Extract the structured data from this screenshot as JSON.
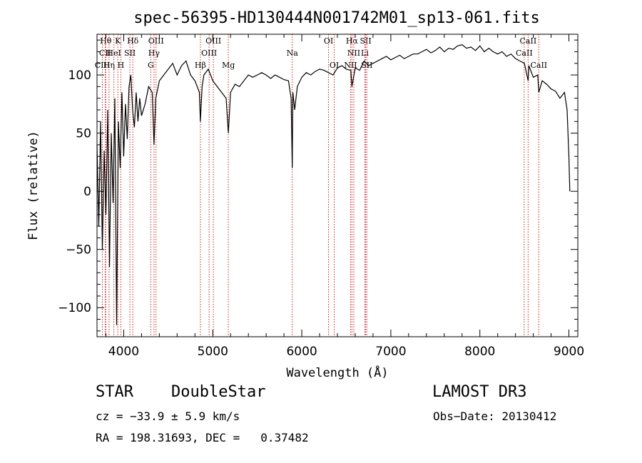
{
  "chart_data": {
    "type": "line",
    "title": "spec-56395-HD130444N001742M01_sp13-061.fits",
    "xlabel": "Wavelength (Å)",
    "ylabel": "Flux (relative)",
    "xlim": [
      3700,
      9100
    ],
    "ylim": [
      -125,
      135
    ],
    "xticks": [
      4000,
      5000,
      6000,
      7000,
      8000,
      9000
    ],
    "yticks": [
      -100,
      -50,
      0,
      50,
      100
    ],
    "xtick_labels": [
      "4000",
      "5000",
      "6000",
      "7000",
      "8000",
      "9000"
    ],
    "ytick_labels": [
      "−100",
      "−50",
      "0",
      "50",
      "100"
    ],
    "series": [
      {
        "name": "spectrum",
        "color": "#000000",
        "x": [
          3700,
          3720,
          3740,
          3760,
          3780,
          3800,
          3820,
          3840,
          3860,
          3880,
          3900,
          3920,
          3940,
          3960,
          3980,
          4000,
          4020,
          4040,
          4060,
          4080,
          4100,
          4120,
          4140,
          4160,
          4180,
          4200,
          4240,
          4280,
          4320,
          4340,
          4360,
          4400,
          4450,
          4500,
          4550,
          4600,
          4650,
          4700,
          4750,
          4800,
          4850,
          4861,
          4880,
          4900,
          4950,
          5000,
          5050,
          5100,
          5150,
          5175,
          5200,
          5250,
          5300,
          5350,
          5400,
          5450,
          5500,
          5550,
          5600,
          5650,
          5700,
          5750,
          5800,
          5850,
          5880,
          5893,
          5900,
          5920,
          5950,
          6000,
          6050,
          6100,
          6150,
          6200,
          6250,
          6300,
          6350,
          6400,
          6450,
          6500,
          6550,
          6563,
          6600,
          6650,
          6700,
          6750,
          6800,
          6850,
          6900,
          6950,
          7000,
          7050,
          7100,
          7150,
          7200,
          7250,
          7300,
          7350,
          7400,
          7450,
          7500,
          7550,
          7600,
          7650,
          7700,
          7750,
          7800,
          7850,
          7900,
          7950,
          8000,
          8050,
          8100,
          8150,
          8200,
          8250,
          8300,
          8350,
          8400,
          8450,
          8500,
          8542,
          8550,
          8600,
          8650,
          8662,
          8700,
          8750,
          8800,
          8850,
          8900,
          8950,
          8980,
          9000,
          9010
        ],
        "y": [
          40,
          -30,
          60,
          -50,
          35,
          -20,
          70,
          -65,
          50,
          -10,
          80,
          -115,
          60,
          20,
          85,
          30,
          75,
          45,
          90,
          100,
          70,
          55,
          85,
          60,
          80,
          65,
          75,
          90,
          85,
          40,
          80,
          95,
          100,
          105,
          110,
          100,
          108,
          112,
          100,
          95,
          85,
          60,
          90,
          100,
          105,
          95,
          90,
          85,
          80,
          50,
          85,
          92,
          90,
          95,
          100,
          98,
          100,
          102,
          100,
          97,
          100,
          98,
          96,
          95,
          80,
          20,
          85,
          70,
          90,
          98,
          102,
          100,
          103,
          105,
          104,
          102,
          100,
          106,
          108,
          105,
          104,
          90,
          106,
          104,
          112,
          108,
          110,
          112,
          114,
          116,
          113,
          115,
          117,
          114,
          116,
          118,
          118,
          120,
          122,
          119,
          121,
          124,
          120,
          123,
          122,
          125,
          126,
          123,
          124,
          121,
          125,
          120,
          123,
          120,
          118,
          120,
          116,
          118,
          114,
          112,
          110,
          95,
          108,
          98,
          100,
          85,
          95,
          92,
          88,
          86,
          80,
          85,
          70,
          30,
          0
        ]
      }
    ],
    "spectral_lines": [
      {
        "label": "Hθ",
        "wl": 3798,
        "row": 1
      },
      {
        "label": "CII",
        "wl": 3792,
        "row": 2
      },
      {
        "label": "CIII",
        "wl": 3760,
        "row": 3
      },
      {
        "label": "K",
        "wl": 3934,
        "row": 1
      },
      {
        "label": "HeI",
        "wl": 3889,
        "row": 2
      },
      {
        "label": "Hη",
        "wl": 3835,
        "row": 3
      },
      {
        "label": "SII",
        "wl": 4069,
        "row": 2
      },
      {
        "label": "H",
        "wl": 3968,
        "row": 3
      },
      {
        "label": "Hδ",
        "wl": 4102,
        "row": 1
      },
      {
        "label": "OIII",
        "wl": 4363,
        "row": 1
      },
      {
        "label": "Hγ",
        "wl": 4340,
        "row": 2
      },
      {
        "label": "G",
        "wl": 4304,
        "row": 3
      },
      {
        "label": "Hβ",
        "wl": 4861,
        "row": 3
      },
      {
        "label": "OIII",
        "wl": 5007,
        "row": 1
      },
      {
        "label": "OIII",
        "wl": 4959,
        "row": 2
      },
      {
        "label": "Mg",
        "wl": 5175,
        "row": 3
      },
      {
        "label": "Na",
        "wl": 5893,
        "row": 2
      },
      {
        "label": "OI",
        "wl": 6300,
        "row": 1
      },
      {
        "label": "OI",
        "wl": 6364,
        "row": 3
      },
      {
        "label": "Hα",
        "wl": 6563,
        "row": 1
      },
      {
        "label": "NII",
        "wl": 6584,
        "row": 2
      },
      {
        "label": "NII",
        "wl": 6548,
        "row": 3
      },
      {
        "label": "SII",
        "wl": 6717,
        "row": 1
      },
      {
        "label": "Li",
        "wl": 6708,
        "row": 2
      },
      {
        "label": "SII",
        "wl": 6731,
        "row": 3
      },
      {
        "label": "CaII",
        "wl": 8542,
        "row": 1
      },
      {
        "label": "CaII",
        "wl": 8498,
        "row": 2
      },
      {
        "label": "CaII",
        "wl": 8662,
        "row": 3
      }
    ],
    "line_color": "#cc2222"
  },
  "info": {
    "class": "STAR",
    "subclass": "DoubleStar",
    "survey": "LAMOST DR3",
    "cz": "cz = −33.9 ± 5.9 km/s",
    "obs_date": "Obs−Date: 20130412",
    "coords": "RA = 198.31693, DEC =   0.37482"
  }
}
